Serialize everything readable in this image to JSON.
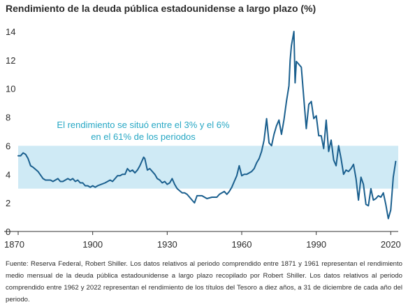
{
  "chart_data": {
    "type": "line",
    "title": "Rendimiento de la deuda pública estadounidense a largo plazo (%)",
    "xlabel": "",
    "ylabel": "",
    "xlim": [
      1870,
      2023
    ],
    "ylim": [
      0,
      14
    ],
    "xticks": [
      1870,
      1900,
      1930,
      1960,
      1990,
      2020
    ],
    "yticks": [
      0,
      2,
      4,
      6,
      8,
      10,
      12,
      14
    ],
    "grid": false,
    "line_color": "#1a5f8e",
    "band": {
      "from": 3,
      "to": 6,
      "color": "#cfeaf5"
    },
    "annotation": [
      "El rendimiento se situó entre el 3% y el 6%",
      "en el 61% de los periodos"
    ],
    "annotation_color": "#26a7c4",
    "series": [
      {
        "x": [
          1870,
          1871,
          1872,
          1873,
          1874,
          1875,
          1876,
          1878,
          1880,
          1881,
          1882,
          1883,
          1884,
          1886,
          1887,
          1888,
          1890,
          1891,
          1892,
          1893,
          1894,
          1895,
          1896,
          1897,
          1898,
          1899,
          1900,
          1901,
          1902,
          1905,
          1907,
          1908,
          1909,
          1910,
          1911,
          1912,
          1913,
          1914,
          1915,
          1916,
          1917,
          1918,
          1919,
          1920,
          1920.5,
          1921,
          1922,
          1923,
          1925,
          1926,
          1927,
          1928,
          1929,
          1930,
          1931,
          1932,
          1933,
          1934,
          1936,
          1937,
          1938,
          1940,
          1941,
          1942,
          1944,
          1946,
          1948,
          1950,
          1951,
          1952,
          1953,
          1954,
          1955,
          1956,
          1957,
          1958,
          1959,
          1960,
          1961,
          1962,
          1963,
          1964,
          1965,
          1966,
          1967,
          1968,
          1969,
          1970,
          1971,
          1972,
          1973,
          1974,
          1975,
          1976,
          1977,
          1978,
          1979,
          1979.5,
          1980,
          1981,
          1981.5,
          1982,
          1983,
          1984,
          1985,
          1986,
          1987,
          1988,
          1989,
          1990,
          1991,
          1992,
          1993,
          1994,
          1995,
          1996,
          1997,
          1998,
          1999,
          2000,
          2001,
          2002,
          2003,
          2004,
          2005,
          2006,
          2007,
          2008,
          2009,
          2010,
          2011,
          2012,
          2013,
          2014,
          2015,
          2016,
          2017,
          2018,
          2019,
          2020,
          2021,
          2022
        ],
        "y": [
          5.3,
          5.3,
          5.5,
          5.4,
          5.1,
          4.6,
          4.5,
          4.2,
          3.7,
          3.6,
          3.6,
          3.6,
          3.5,
          3.7,
          3.5,
          3.5,
          3.7,
          3.6,
          3.7,
          3.5,
          3.6,
          3.4,
          3.4,
          3.2,
          3.2,
          3.1,
          3.2,
          3.1,
          3.2,
          3.4,
          3.6,
          3.5,
          3.7,
          3.9,
          3.9,
          4.0,
          4.0,
          4.4,
          4.2,
          4.3,
          4.1,
          4.3,
          4.6,
          5.0,
          5.2,
          5.1,
          4.3,
          4.4,
          4.0,
          3.7,
          3.6,
          3.4,
          3.5,
          3.3,
          3.4,
          3.7,
          3.3,
          3.0,
          2.7,
          2.7,
          2.6,
          2.2,
          2.0,
          2.5,
          2.5,
          2.3,
          2.4,
          2.4,
          2.6,
          2.7,
          2.8,
          2.6,
          2.8,
          3.1,
          3.5,
          3.9,
          4.6,
          3.9,
          4.0,
          4.0,
          4.1,
          4.2,
          4.4,
          4.8,
          5.1,
          5.6,
          6.4,
          7.9,
          6.2,
          6.0,
          6.8,
          7.4,
          7.8,
          6.8,
          7.8,
          9.1,
          10.2,
          12.0,
          13.0,
          14.0,
          10.4,
          11.9,
          11.7,
          11.5,
          9.3,
          7.2,
          8.9,
          9.1,
          7.9,
          8.1,
          6.7,
          6.7,
          5.8,
          7.8,
          5.6,
          6.4,
          5.0,
          4.6,
          6.0,
          5.1,
          4.0,
          4.3,
          4.2,
          4.4,
          4.7,
          3.7,
          2.2,
          3.8,
          3.3,
          1.9,
          1.8,
          3.0,
          2.2,
          2.3,
          2.5,
          2.4,
          2.7,
          1.9,
          0.9,
          1.5,
          3.8,
          4.9
        ]
      }
    ]
  },
  "source_text": "Fuente: Reserva Federal, Robert Shiller. Los datos relativos al periodo comprendido entre 1871 y 1961 representan el rendimiento medio mensual de la deuda pública estadounidense a largo plazo recopilado por Robert Shiller. Los datos relativos al periodo comprendido entre 1962 y 2022 representan el rendimiento de los títulos del Tesoro a diez años, a 31 de diciembre de cada año del periodo."
}
